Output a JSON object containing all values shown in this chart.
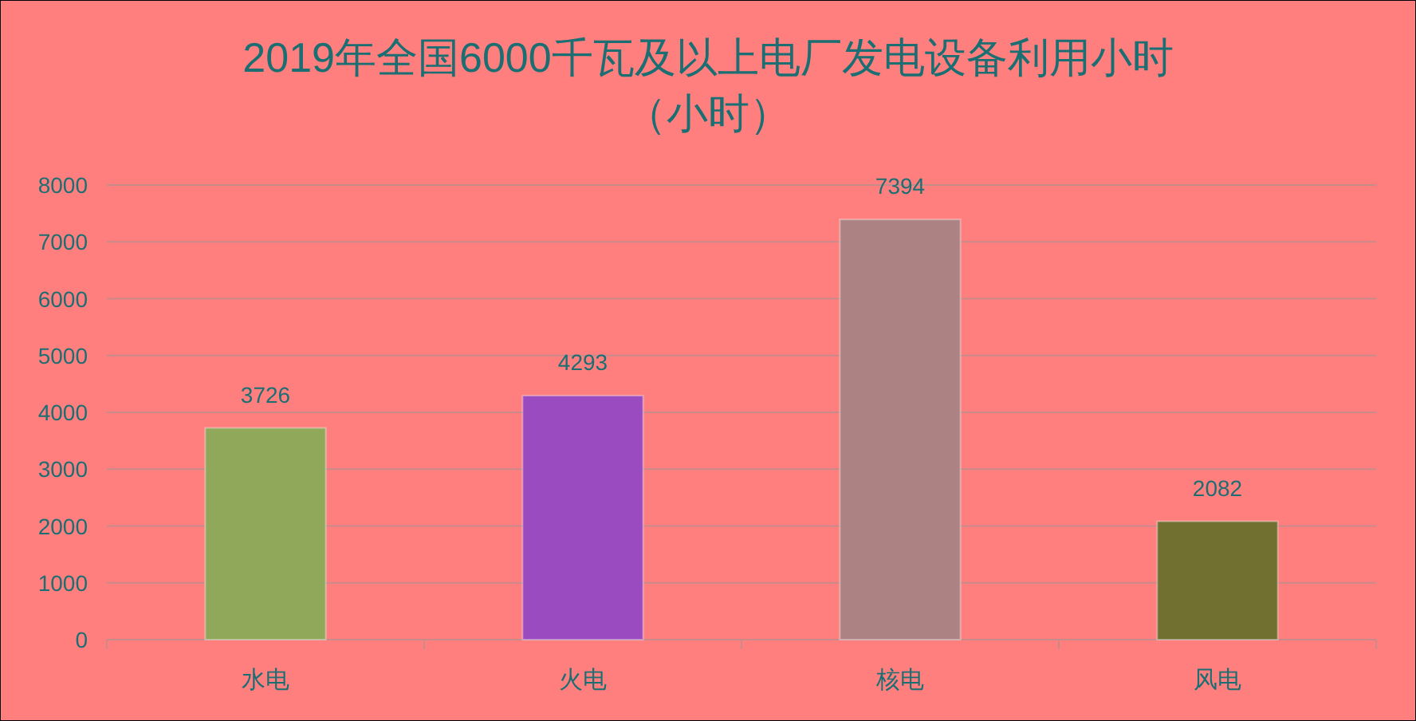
{
  "chart_data": {
    "type": "bar",
    "title": "2019年全国6000千瓦及以上电厂发电设备利用小时",
    "subtitle": "（小时）",
    "categories": [
      "水电",
      "火电",
      "核电",
      "风电"
    ],
    "values": [
      3726,
      4293,
      7394,
      2082
    ],
    "colors": [
      "#8fa85a",
      "#9a4bc0",
      "#ac8282",
      "#717030"
    ],
    "ylim": [
      0,
      8000
    ],
    "yticks": [
      0,
      1000,
      2000,
      3000,
      4000,
      5000,
      6000,
      7000,
      8000
    ],
    "grid": "y",
    "data_labels": true
  }
}
